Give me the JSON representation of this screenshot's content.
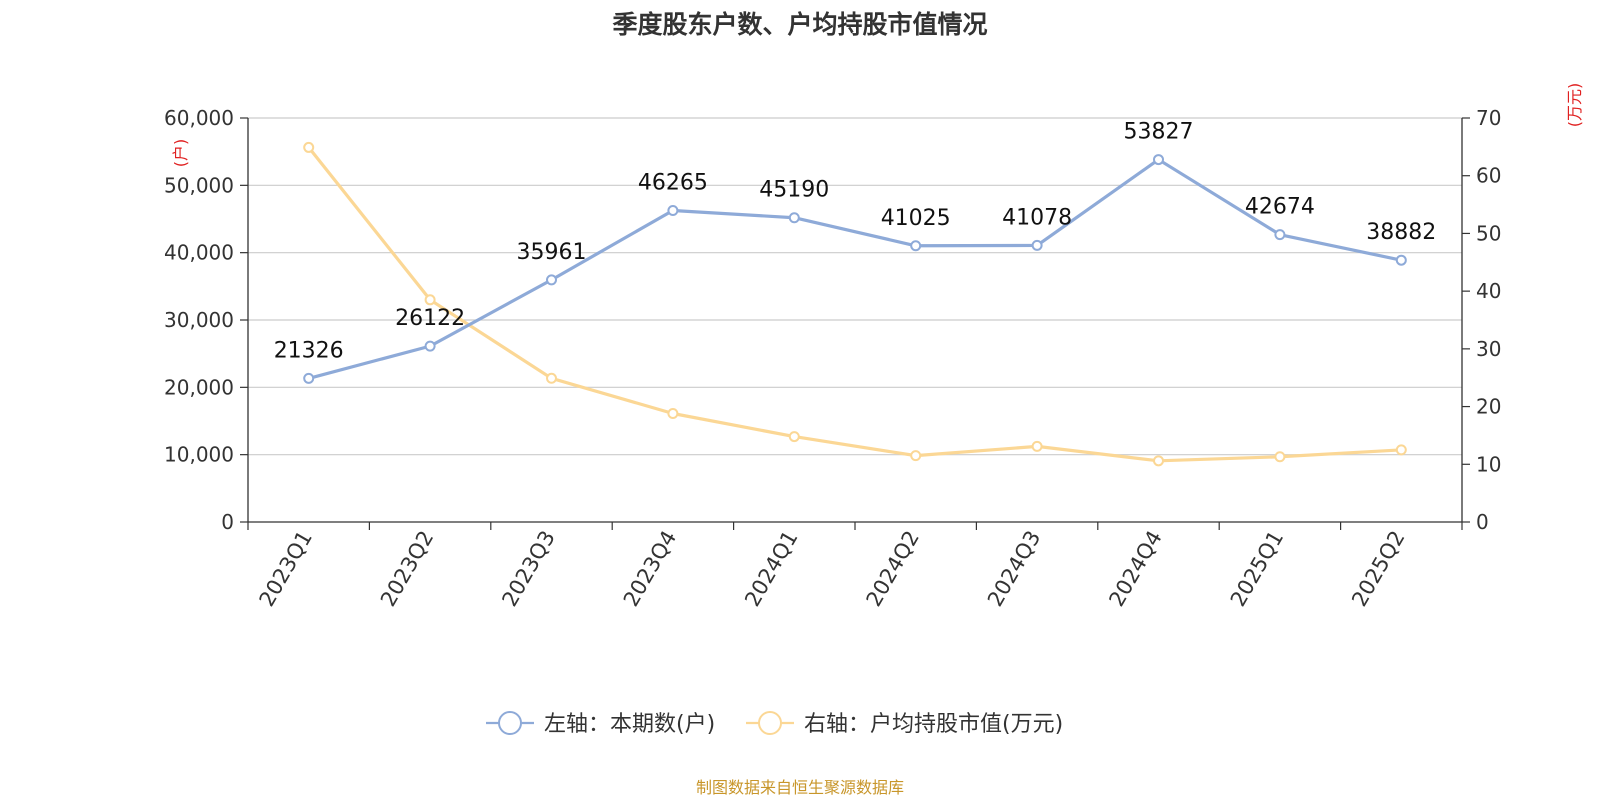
{
  "chart_data": {
    "type": "line",
    "title": "季度股东户数、户均持股市值情况",
    "categories": [
      "2023Q1",
      "2023Q2",
      "2023Q3",
      "2023Q4",
      "2024Q1",
      "2024Q2",
      "2024Q3",
      "2024Q4",
      "2025Q1",
      "2025Q2"
    ],
    "series": [
      {
        "name": "左轴：本期数(户)",
        "axis": "left",
        "color": "#8eaad8",
        "values": [
          21326,
          26122,
          35961,
          46265,
          45190,
          41025,
          41078,
          53827,
          42674,
          38882
        ],
        "data_labels": [
          "21326",
          "26122",
          "35961",
          "46265",
          "45190",
          "41025",
          "41078",
          "53827",
          "42674",
          "38882"
        ]
      },
      {
        "name": "右轴：户均持股市值(万元)",
        "axis": "right",
        "color": "#fbd795",
        "values": [
          64.9,
          38.5,
          24.9,
          18.8,
          14.8,
          11.5,
          13.1,
          10.6,
          11.3,
          12.5
        ]
      }
    ],
    "y_left": {
      "unit_label": "(户)",
      "range": [
        0,
        60000
      ],
      "ticks": [
        0,
        10000,
        20000,
        30000,
        40000,
        50000,
        60000
      ],
      "tick_labels": [
        "0",
        "10,000",
        "20,000",
        "30,000",
        "40,000",
        "50,000",
        "60,000"
      ]
    },
    "y_right": {
      "unit_label": "(万元)",
      "range": [
        0,
        70
      ],
      "ticks": [
        0,
        10,
        20,
        30,
        40,
        50,
        60,
        70
      ],
      "tick_labels": [
        "0",
        "10",
        "20",
        "30",
        "40",
        "50",
        "60",
        "70"
      ]
    },
    "grid": true,
    "legend_position": "bottom",
    "unit_color": "#e02020"
  },
  "source_note": "制图数据来自恒生聚源数据库",
  "source_color": "#c8962a"
}
